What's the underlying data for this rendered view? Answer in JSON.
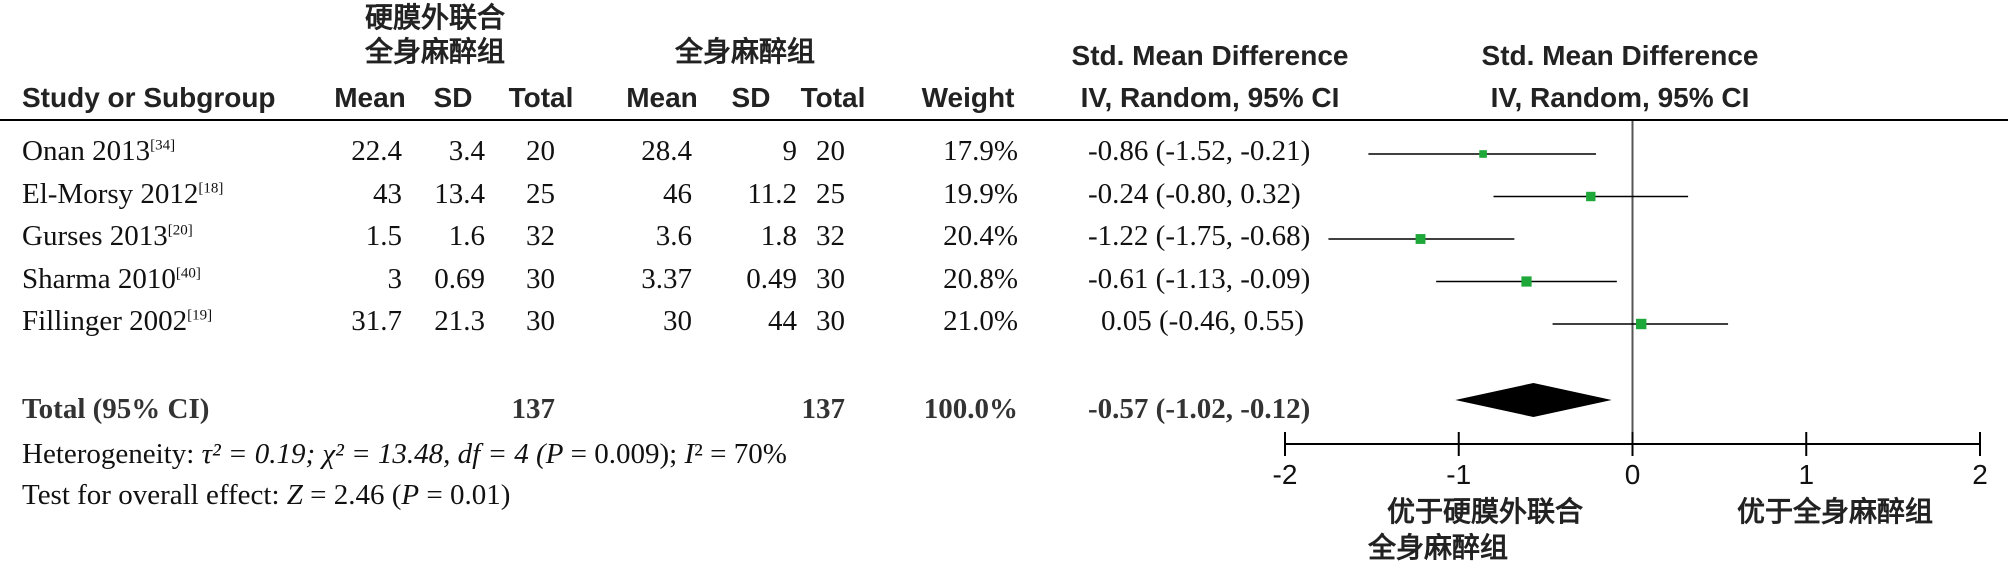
{
  "header": {
    "group1_label": [
      "硬膜外联合",
      "全身麻醉组"
    ],
    "group2_label": "全身麻醉组",
    "study_col": "Study or Subgroup",
    "mean_col": "Mean",
    "sd_col": "SD",
    "total_col": "Total",
    "weight_col": "Weight",
    "effect_title": "Std. Mean Difference",
    "effect_method": "IV, Random, 95% CI",
    "plot_title": "Std. Mean Difference",
    "plot_method": "IV, Random, 95% CI"
  },
  "studies": [
    {
      "name": "Onan 2013",
      "ref": "[34]",
      "g1_mean": "22.4",
      "g1_sd": "3.4",
      "g1_total": "20",
      "g2_mean": "28.4",
      "g2_sd": "9",
      "g2_total": "20",
      "weight": "17.9%",
      "ci_text": "-0.86 (-1.52, -0.21)"
    },
    {
      "name": "El-Morsy 2012",
      "ref": "[18]",
      "g1_mean": "43",
      "g1_sd": "13.4",
      "g1_total": "25",
      "g2_mean": "46",
      "g2_sd": "11.2",
      "g2_total": "25",
      "weight": "19.9%",
      "ci_text": "-0.24 (-0.80, 0.32)"
    },
    {
      "name": "Gurses 2013",
      "ref": "[20]",
      "g1_mean": "1.5",
      "g1_sd": "1.6",
      "g1_total": "32",
      "g2_mean": "3.6",
      "g2_sd": "1.8",
      "g2_total": "32",
      "weight": "20.4%",
      "ci_text": "-1.22 (-1.75, -0.68)"
    },
    {
      "name": "Sharma 2010",
      "ref": "[40]",
      "g1_mean": "3",
      "g1_sd": "0.69",
      "g1_total": "30",
      "g2_mean": "3.37",
      "g2_sd": "0.49",
      "g2_total": "30",
      "weight": "20.8%",
      "ci_text": "-0.61 (-1.13, -0.09)"
    },
    {
      "name": "Fillinger 2002",
      "ref": "[19]",
      "g1_mean": "31.7",
      "g1_sd": "21.3",
      "g1_total": "30",
      "g2_mean": "30",
      "g2_sd": "44",
      "g2_total": "30",
      "weight": "21.0%",
      "ci_text": "0.05 (-0.46, 0.55)"
    }
  ],
  "total_row": {
    "label": "Total (95% CI)",
    "g1_total": "137",
    "g2_total": "137",
    "weight": "100.0%",
    "ci_text": "-0.57 (-1.02, -0.12)"
  },
  "heterogeneity": {
    "label": "Heterogeneity: ",
    "tau_part": "τ² = 0.19; ",
    "chi_part": "χ² = 13.48, df = 4 (",
    "p_var": "P",
    "p_part": " = 0.009); ",
    "i_var": "I",
    "i_part": "² = 70%"
  },
  "overall_effect": {
    "label": "Test for overall effect: ",
    "z_var": "Z",
    "z_part": " = 2.46 (",
    "p_var": "P",
    "p_part": " = 0.01)"
  },
  "axis_labels": {
    "left": [
      "优于硬膜外联合",
      "全身麻醉组"
    ],
    "right": "优于全身麻醉组"
  },
  "colors": {
    "marker": "#1fa83a",
    "diamond": "#000000",
    "line": "#000000",
    "zero_line": "#555555"
  },
  "chart_data": {
    "type": "forest",
    "xlim": [
      -2,
      2
    ],
    "ticks": [
      -2,
      -1,
      0,
      1,
      2
    ],
    "tick_labels": [
      "-2",
      "-1",
      "0",
      "1",
      "2"
    ],
    "points": [
      {
        "est": -0.86,
        "low": -1.52,
        "high": -0.21,
        "weight": 17.9
      },
      {
        "est": -0.24,
        "low": -0.8,
        "high": 0.32,
        "weight": 19.9
      },
      {
        "est": -1.22,
        "low": -1.75,
        "high": -0.68,
        "weight": 20.4
      },
      {
        "est": -0.61,
        "low": -1.13,
        "high": -0.09,
        "weight": 20.8
      },
      {
        "est": 0.05,
        "low": -0.46,
        "high": 0.55,
        "weight": 21.0
      }
    ],
    "pooled": {
      "est": -0.57,
      "low": -1.02,
      "high": -0.12
    }
  }
}
